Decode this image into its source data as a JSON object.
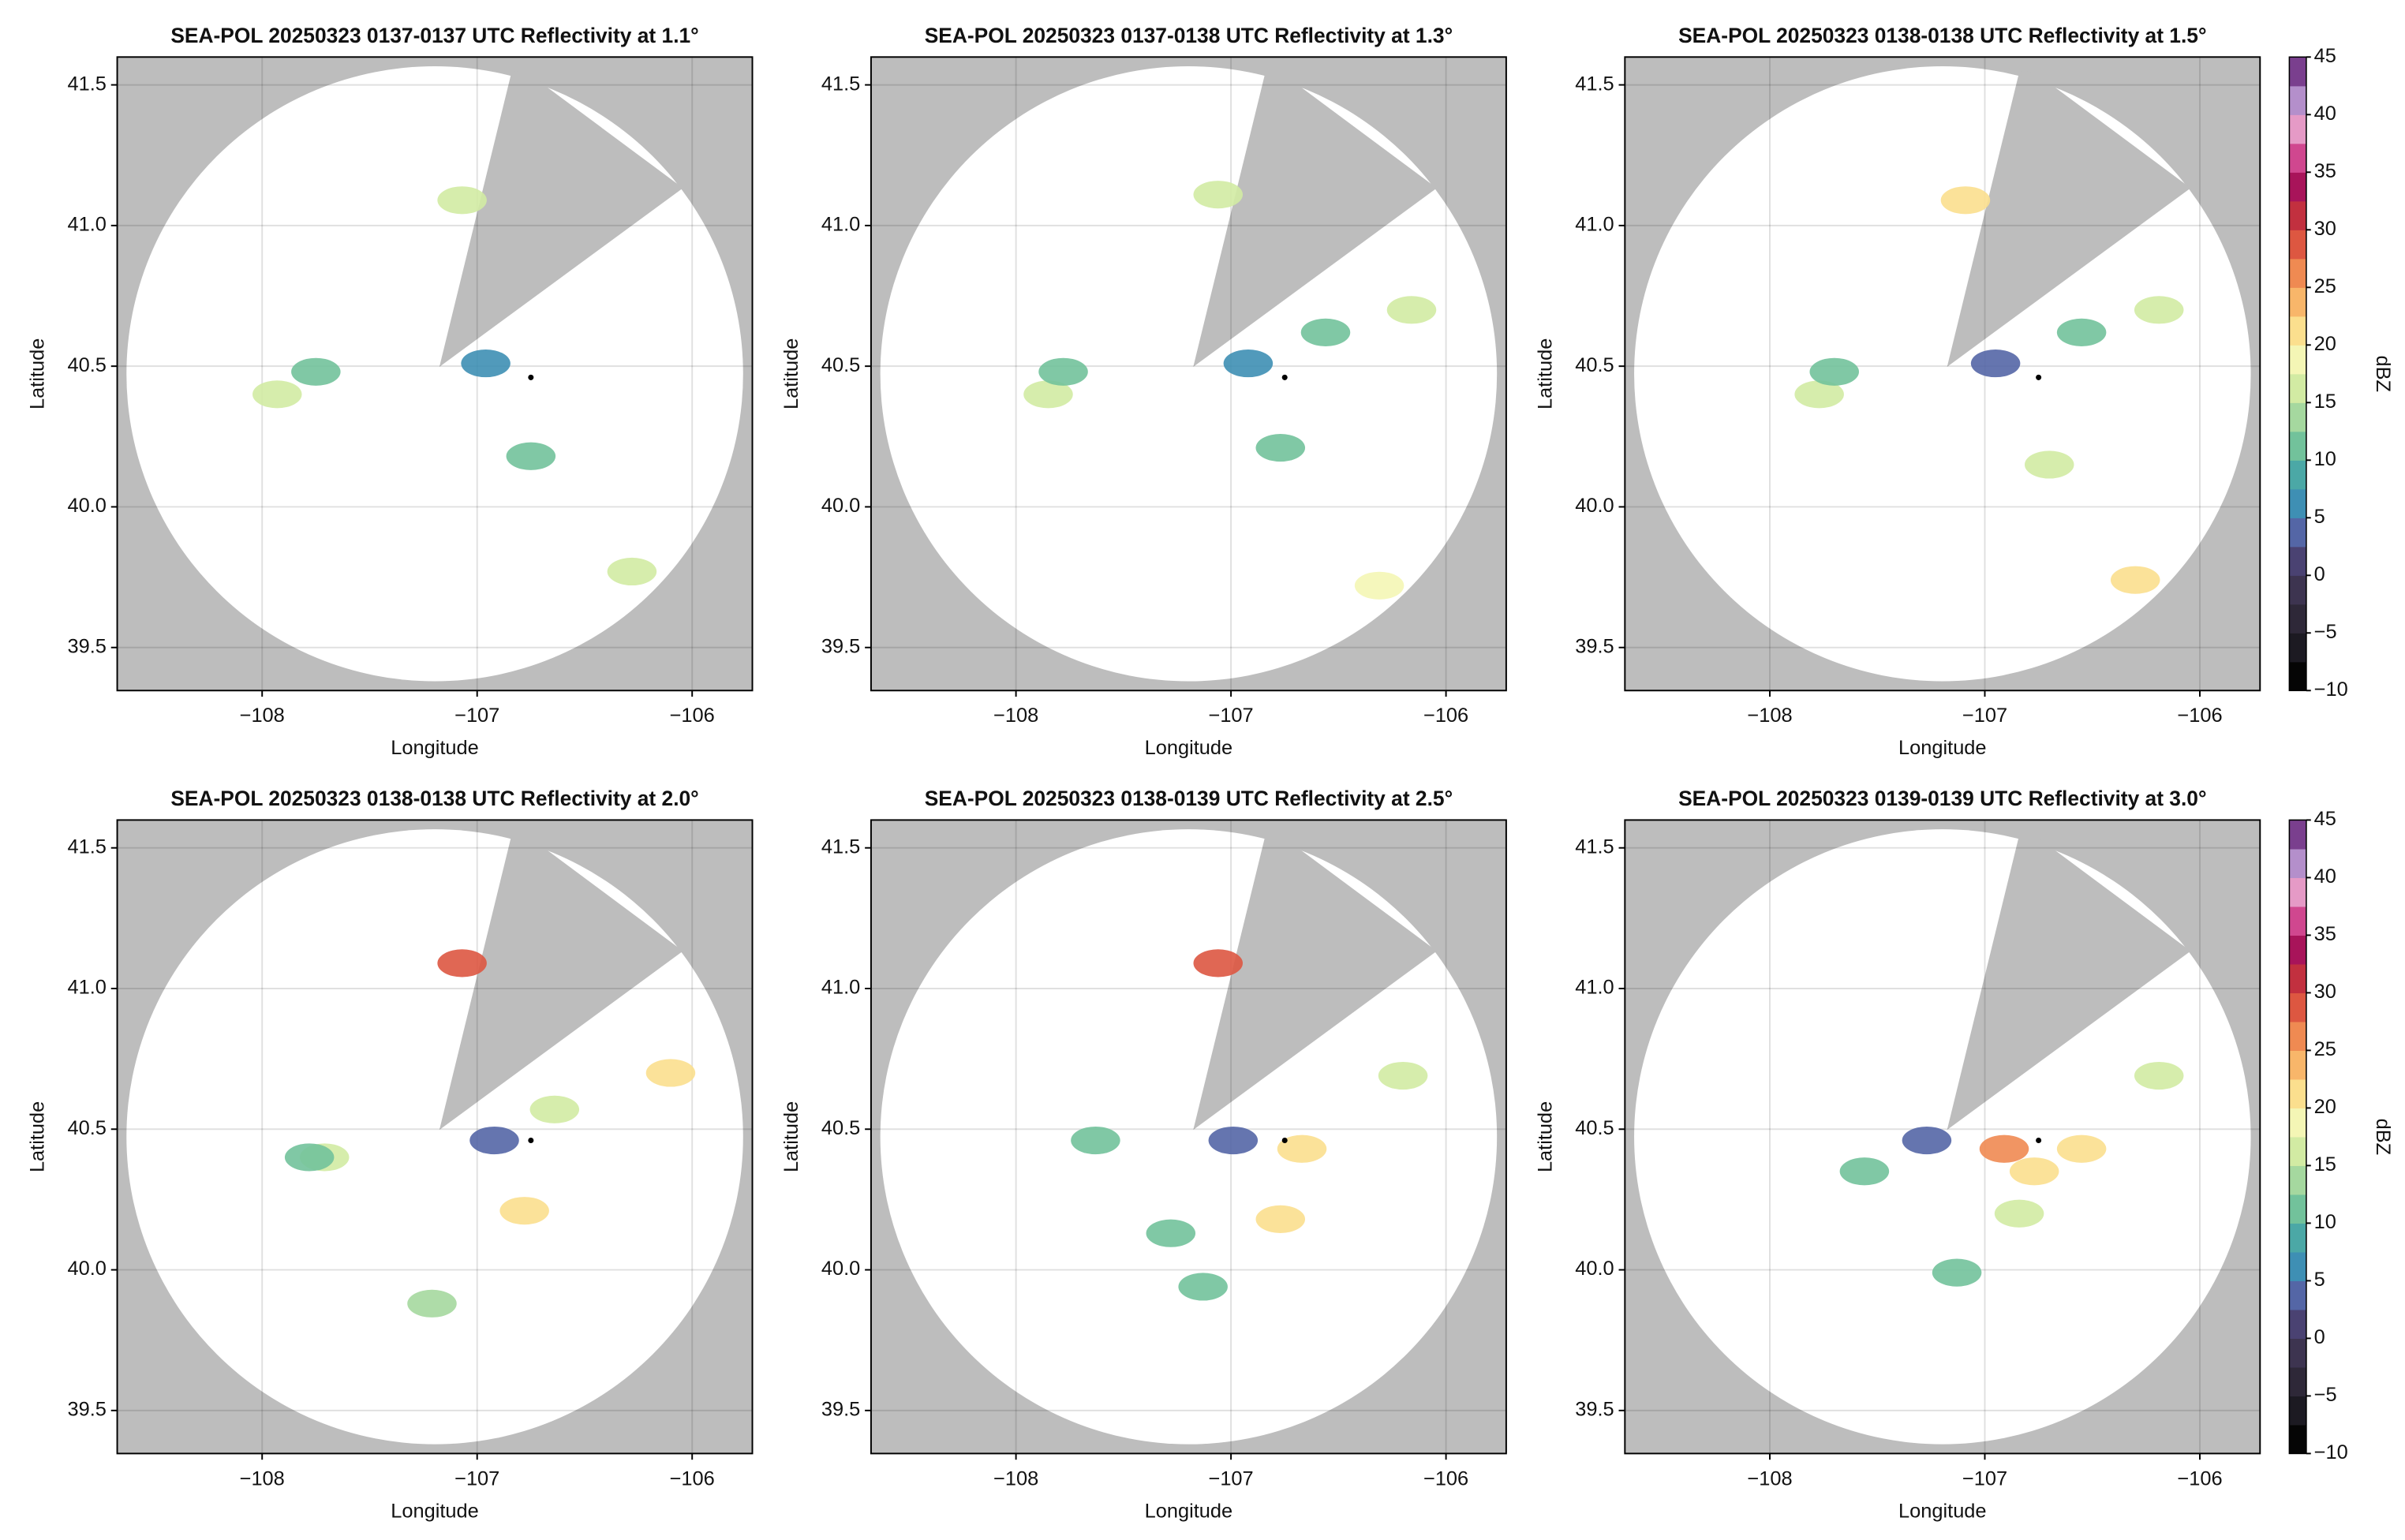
{
  "chart_data": [
    {
      "type": "ppi",
      "title": "SEA-POL 20250323 0137-0137 UTC Reflectivity at 1.1°",
      "xlabel": "Longitude",
      "ylabel": "Latitude",
      "xlim": [
        -108.674,
        -105.72
      ],
      "ylim": [
        39.347,
        41.599
      ],
      "xticks": [
        {
          "value": -108,
          "label": "−108"
        },
        {
          "value": -107,
          "label": "−107"
        },
        {
          "value": -106,
          "label": "−106"
        }
      ],
      "yticks": [
        39.5,
        {
          "value": 40.0,
          "label": "40.0"
        },
        40.5,
        {
          "value": 41.0,
          "label": "41.0"
        },
        41.5
      ],
      "grid": true,
      "radar_site": {
        "lon": -106.75,
        "lat": 40.46
      },
      "echoes": {
        "lon": [
          -107.93,
          -107.75,
          -106.96,
          -106.75,
          -107.07,
          -106.28
        ],
        "lat": [
          40.4,
          40.48,
          40.51,
          40.18,
          41.09,
          39.77
        ],
        "dbz": [
          15,
          12,
          5,
          12,
          15,
          17
        ]
      }
    },
    {
      "type": "ppi",
      "title": "SEA-POL 20250323 0137-0138 UTC Reflectivity at 1.3°",
      "xlabel": "Longitude",
      "ylabel": "Latitude",
      "xlim": [
        -108.674,
        -105.72
      ],
      "ylim": [
        39.347,
        41.599
      ],
      "xticks": [
        {
          "value": -108,
          "label": "−108"
        },
        {
          "value": -107,
          "label": "−107"
        },
        {
          "value": -106,
          "label": "−106"
        }
      ],
      "yticks": [
        39.5,
        {
          "value": 40.0,
          "label": "40.0"
        },
        40.5,
        {
          "value": 41.0,
          "label": "41.0"
        },
        41.5
      ],
      "grid": true,
      "radar_site": {
        "lon": -106.75,
        "lat": 40.46
      },
      "echoes": {
        "lon": [
          -107.85,
          -107.78,
          -106.77,
          -107.06,
          -106.31,
          -106.56,
          -106.16,
          -106.92
        ],
        "lat": [
          40.4,
          40.48,
          40.21,
          41.11,
          39.72,
          40.62,
          40.7,
          40.51
        ],
        "dbz": [
          15,
          10,
          12,
          17,
          18,
          12,
          17,
          5
        ]
      }
    },
    {
      "type": "ppi",
      "title": "SEA-POL 20250323 0138-0138 UTC Reflectivity at 1.5°",
      "xlabel": "Longitude",
      "ylabel": "Latitude",
      "xlim": [
        -108.674,
        -105.72
      ],
      "ylim": [
        39.347,
        41.599
      ],
      "xticks": [
        {
          "value": -108,
          "label": "−108"
        },
        {
          "value": -107,
          "label": "−107"
        },
        {
          "value": -106,
          "label": "−106"
        }
      ],
      "yticks": [
        39.5,
        {
          "value": 40.0,
          "label": "40.0"
        },
        40.5,
        {
          "value": 41.0,
          "label": "41.0"
        },
        41.5
      ],
      "grid": true,
      "radar_site": {
        "lon": -106.75,
        "lat": 40.46
      },
      "echoes": {
        "lon": [
          -107.77,
          -107.7,
          -106.7,
          -107.09,
          -106.3,
          -106.55,
          -106.19,
          -106.95
        ],
        "lat": [
          40.4,
          40.48,
          40.15,
          41.09,
          39.74,
          40.62,
          40.7,
          40.51
        ],
        "dbz": [
          15,
          10,
          17,
          22,
          20,
          12,
          17,
          3
        ]
      },
      "colorbar": {
        "label": "dBZ",
        "lim": [
          -10,
          45
        ],
        "ticks": [
          {
            "value": -10,
            "label": "−10"
          },
          {
            "value": -5,
            "label": "−5"
          },
          0,
          5,
          10,
          15,
          20,
          25,
          30,
          35,
          40,
          45
        ],
        "colors": [
          "#050505",
          "#1c1a22",
          "#2e2838",
          "#3d3450",
          "#4a4272",
          "#5466a6",
          "#3e8fb4",
          "#4ba8a6",
          "#72c29b",
          "#a5d89f",
          "#d2eba3",
          "#f4f6b5",
          "#fbdf8e",
          "#f8b66a",
          "#ef8a52",
          "#dd5741",
          "#c2303f",
          "#a8145a",
          "#d0478f",
          "#e59ac6",
          "#b48fcb",
          "#7a3f8e"
        ]
      }
    },
    {
      "type": "ppi",
      "title": "SEA-POL 20250323 0138-0138 UTC Reflectivity at 2.0°",
      "xlabel": "Longitude",
      "ylabel": "Latitude",
      "xlim": [
        -108.674,
        -105.72
      ],
      "ylim": [
        39.347,
        41.599
      ],
      "xticks": [
        {
          "value": -108,
          "label": "−108"
        },
        {
          "value": -107,
          "label": "−107"
        },
        {
          "value": -106,
          "label": "−106"
        }
      ],
      "yticks": [
        39.5,
        {
          "value": 40.0,
          "label": "40.0"
        },
        40.5,
        {
          "value": 41.0,
          "label": "41.0"
        },
        41.5
      ],
      "grid": true,
      "radar_site": {
        "lon": -106.75,
        "lat": 40.46
      },
      "echoes": {
        "lon": [
          -107.71,
          -106.78,
          -107.07,
          -106.64,
          -106.92,
          -106.1,
          -107.21,
          -107.78
        ],
        "lat": [
          40.4,
          40.21,
          41.09,
          40.57,
          40.46,
          40.7,
          39.88,
          40.4
        ],
        "dbz": [
          15,
          22,
          28,
          15,
          3,
          20,
          14,
          12
        ]
      }
    },
    {
      "type": "ppi",
      "title": "SEA-POL 20250323 0138-0139 UTC Reflectivity at 2.5°",
      "xlabel": "Longitude",
      "ylabel": "Latitude",
      "xlim": [
        -108.674,
        -105.72
      ],
      "ylim": [
        39.347,
        41.599
      ],
      "xticks": [
        {
          "value": -108,
          "label": "−108"
        },
        {
          "value": -107,
          "label": "−107"
        },
        {
          "value": -106,
          "label": "−106"
        }
      ],
      "yticks": [
        39.5,
        {
          "value": 40.0,
          "label": "40.0"
        },
        40.5,
        {
          "value": 41.0,
          "label": "41.0"
        },
        41.5
      ],
      "grid": true,
      "radar_site": {
        "lon": -106.75,
        "lat": 40.46
      },
      "echoes": {
        "lon": [
          -106.77,
          -106.67,
          -107.63,
          -107.13,
          -107.06,
          -106.99,
          -106.2,
          -107.28
        ],
        "lat": [
          40.18,
          40.43,
          40.46,
          39.94,
          41.09,
          40.46,
          40.69,
          40.13
        ],
        "dbz": [
          22,
          20,
          12,
          12,
          28,
          3,
          17,
          10
        ]
      }
    },
    {
      "type": "ppi",
      "title": "SEA-POL 20250323 0139-0139 UTC Reflectivity at 3.0°",
      "xlabel": "Longitude",
      "ylabel": "Latitude",
      "xlim": [
        -108.674,
        -105.72
      ],
      "ylim": [
        39.347,
        41.599
      ],
      "xticks": [
        {
          "value": -108,
          "label": "−108"
        },
        {
          "value": -107,
          "label": "−107"
        },
        {
          "value": -106,
          "label": "−106"
        }
      ],
      "yticks": [
        39.5,
        {
          "value": 40.0,
          "label": "40.0"
        },
        40.5,
        {
          "value": 41.0,
          "label": "41.0"
        },
        41.5
      ],
      "grid": true,
      "radar_site": {
        "lon": -106.75,
        "lat": 40.46
      },
      "echoes": {
        "lon": [
          -106.77,
          -106.55,
          -107.56,
          -107.13,
          -106.84,
          -106.91,
          -107.27,
          -106.19
        ],
        "lat": [
          40.35,
          40.43,
          40.35,
          39.99,
          40.2,
          40.43,
          40.46,
          40.69
        ],
        "dbz": [
          20,
          22,
          12,
          12,
          17,
          27,
          3,
          15
        ]
      },
      "colorbar": {
        "label": "dBZ",
        "lim": [
          -10,
          45
        ],
        "ticks": [
          {
            "value": -10,
            "label": "−10"
          },
          {
            "value": -5,
            "label": "−5"
          },
          0,
          5,
          10,
          15,
          20,
          25,
          30,
          35,
          40,
          45
        ],
        "colors": [
          "#050505",
          "#1c1a22",
          "#2e2838",
          "#3d3450",
          "#4a4272",
          "#5466a6",
          "#3e8fb4",
          "#4ba8a6",
          "#72c29b",
          "#a5d89f",
          "#d2eba3",
          "#f4f6b5",
          "#fbdf8e",
          "#f8b66a",
          "#ef8a52",
          "#dd5741",
          "#c2303f",
          "#a8145a",
          "#d0478f",
          "#e59ac6",
          "#b48fcb",
          "#7a3f8e"
        ]
      }
    }
  ]
}
